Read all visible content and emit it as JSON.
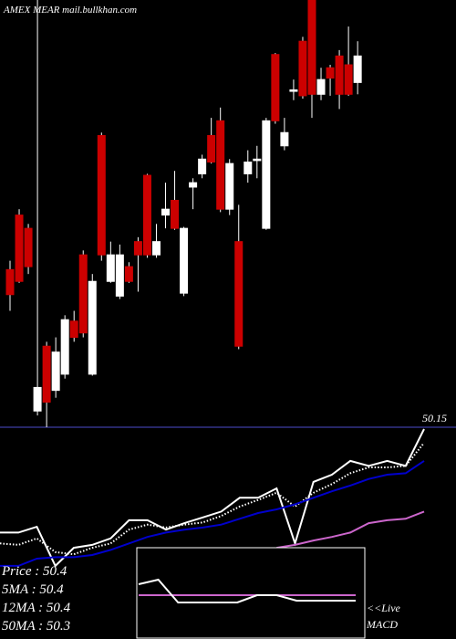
{
  "chart_data": [
    {
      "type": "candlestick",
      "title": "AMEX  MEAR mail.bullkhan.com",
      "up_color": "#ffffff",
      "down_color": "#cc0000",
      "ylim": [
        50.15,
        50.44
      ],
      "yticks": [
        50.15
      ],
      "grid": false,
      "series": {
        "open": [
          50.257,
          50.294,
          50.285,
          50.161,
          50.205,
          50.175,
          50.186,
          50.222,
          50.267,
          50.186,
          50.348,
          50.249,
          50.239,
          50.259,
          50.276,
          50.321,
          50.267,
          50.294,
          50.304,
          50.241,
          50.313,
          50.322,
          50.348,
          50.358,
          50.298,
          50.276,
          50.322,
          50.331,
          50.285,
          50.403,
          50.341,
          50.378,
          50.412,
          50.44,
          50.376,
          50.394,
          50.402,
          50.396,
          50.384
        ],
        "high": [
          50.263,
          50.298,
          50.288,
          50.44,
          50.208,
          50.211,
          50.226,
          50.229,
          50.27,
          50.254,
          50.35,
          50.276,
          50.274,
          50.262,
          50.279,
          50.322,
          50.288,
          50.316,
          50.324,
          50.286,
          50.319,
          50.335,
          50.36,
          50.367,
          50.332,
          50.301,
          50.338,
          50.341,
          50.36,
          50.404,
          50.36,
          50.386,
          50.415,
          50.44,
          50.394,
          50.396,
          50.406,
          50.422,
          50.412
        ],
        "low": [
          50.229,
          50.248,
          50.254,
          50.158,
          50.15,
          50.17,
          50.183,
          50.208,
          50.211,
          50.185,
          50.263,
          50.248,
          50.237,
          50.248,
          50.242,
          50.265,
          50.265,
          50.285,
          50.284,
          50.239,
          50.298,
          50.319,
          50.329,
          50.296,
          50.294,
          50.203,
          50.316,
          50.319,
          50.284,
          50.356,
          50.338,
          50.372,
          50.373,
          50.36,
          50.372,
          50.375,
          50.366,
          50.375,
          50.376
        ],
        "close": [
          50.24,
          50.249,
          50.259,
          50.177,
          50.167,
          50.201,
          50.223,
          50.211,
          50.214,
          50.249,
          50.267,
          50.267,
          50.267,
          50.249,
          50.267,
          50.267,
          50.276,
          50.298,
          50.285,
          50.285,
          50.316,
          50.332,
          50.33,
          50.298,
          50.329,
          50.205,
          50.33,
          50.332,
          50.358,
          50.358,
          50.35,
          50.379,
          50.375,
          50.376,
          50.386,
          50.387,
          50.376,
          50.376,
          50.402
        ]
      }
    },
    {
      "type": "line",
      "ylim": [
        50.15,
        50.44
      ],
      "series": [
        {
          "name": "Price : 50.4",
          "color": "#ffffff",
          "style": "solid",
          "values": [
            50.297,
            50.297,
            50.305,
            50.251,
            50.276,
            50.28,
            50.289,
            50.314,
            50.314,
            50.301,
            50.31,
            50.318,
            50.326,
            50.345,
            50.345,
            50.358,
            50.282,
            50.367,
            50.377,
            50.396,
            50.389,
            50.396,
            50.389,
            50.44
          ]
        },
        {
          "name": "5MA : 50.4",
          "color": "#ffffff",
          "style": "dotted",
          "values": [
            50.282,
            50.28,
            50.289,
            50.27,
            50.267,
            50.276,
            50.282,
            50.301,
            50.308,
            50.304,
            50.308,
            50.311,
            50.32,
            50.333,
            50.342,
            50.352,
            50.333,
            50.352,
            50.364,
            50.379,
            50.387,
            50.387,
            50.389,
            50.421
          ]
        },
        {
          "name": "12MA : 50.4",
          "color": "#0000cc",
          "style": "solid",
          "values": [
            50.251,
            50.251,
            50.261,
            50.263,
            50.263,
            50.266,
            50.273,
            50.282,
            50.291,
            50.297,
            50.301,
            50.304,
            50.308,
            50.316,
            50.324,
            50.329,
            50.336,
            50.345,
            50.354,
            50.362,
            50.371,
            50.377,
            50.379,
            50.396
          ]
        },
        {
          "name": "50MA : 50.3",
          "color": "#cc66cc",
          "style": "solid",
          "values": [
            null,
            null,
            null,
            null,
            null,
            null,
            null,
            null,
            null,
            null,
            null,
            null,
            null,
            null,
            null,
            50.276,
            50.28,
            50.286,
            50.291,
            50.297,
            50.31,
            50.314,
            50.316,
            50.326
          ]
        }
      ]
    },
    {
      "type": "line",
      "ylim": [
        -1,
        1
      ],
      "annotations": [
        "<<Live"
      ],
      "series": [
        {
          "name": "MACD",
          "color": "#ffffff",
          "values": [
            0.2,
            0.3,
            -0.2,
            -0.2,
            -0.2,
            -0.2,
            -0.04,
            -0.04,
            -0.16,
            -0.16,
            -0.16,
            -0.16
          ]
        },
        {
          "color": "#cc66cc",
          "values": [
            -0.04,
            -0.04,
            -0.04,
            -0.04,
            -0.04,
            -0.04,
            -0.04,
            -0.04,
            -0.04,
            -0.04,
            -0.04,
            -0.04
          ]
        }
      ]
    }
  ]
}
